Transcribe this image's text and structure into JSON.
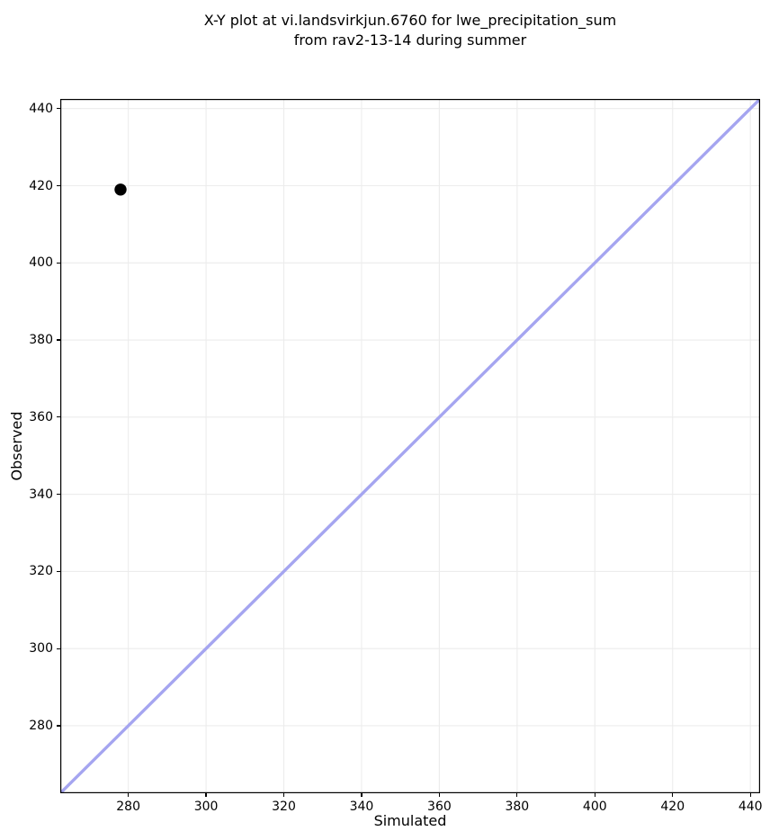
{
  "figure": {
    "title_line1": "X-Y plot at vi.landsvirkjun.6760 for lwe_precipitation_sum",
    "title_line2": "from rav2-13-14 during summer"
  },
  "chart_data": {
    "type": "scatter",
    "title": "X-Y plot at vi.landsvirkjun.6760 for lwe_precipitation_sum\nfrom rav2-13-14 during summer",
    "xlabel": "Simulated",
    "ylabel": "Observed",
    "xlim": [
      262.5,
      442.5
    ],
    "ylim": [
      262.5,
      442.5
    ],
    "x_ticks": [
      280,
      300,
      320,
      340,
      360,
      380,
      400,
      420,
      440
    ],
    "y_ticks": [
      280,
      300,
      320,
      340,
      360,
      380,
      400,
      420,
      440
    ],
    "grid": true,
    "legend": "none",
    "series": [
      {
        "name": "identity-line",
        "type": "line",
        "description": "1:1 reference line y = x, corner to corner",
        "color": "#a5a5f0",
        "points": [
          {
            "x": 262.5,
            "y": 262.5
          },
          {
            "x": 442.5,
            "y": 442.5
          }
        ]
      },
      {
        "name": "observed-vs-simulated",
        "type": "scatter",
        "marker": "circle",
        "color": "#000000",
        "points": [
          {
            "x": 278,
            "y": 419
          }
        ]
      }
    ],
    "colors": {
      "background": "#ffffff",
      "grid": "#ececec",
      "spine": "#000000",
      "tick": "#000000",
      "marker": "#000000",
      "identity_line": "#a5a5f0"
    }
  }
}
